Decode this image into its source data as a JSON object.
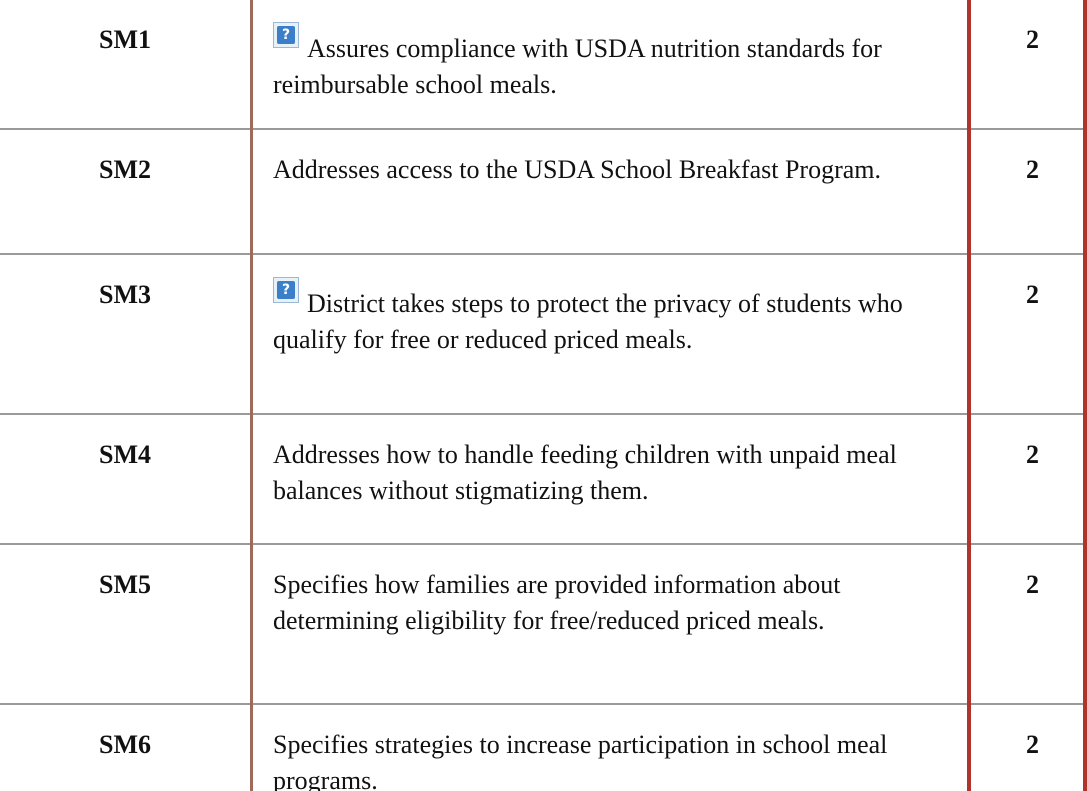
{
  "table": {
    "rows": [
      {
        "code": "SM1",
        "text": "Assures compliance with USDA nutrition standards for reimbursable school meals.",
        "points": "2",
        "help_icon": true
      },
      {
        "code": "SM2",
        "text": "Addresses access to the USDA School Breakfast Program.",
        "points": "2",
        "help_icon": false
      },
      {
        "code": "SM3",
        "text": "District takes steps to protect the privacy of students who qualify for free or reduced priced meals.",
        "points": "2",
        "help_icon": true
      },
      {
        "code": "SM4",
        "text": "Addresses how to handle feeding children with unpaid meal balances without stigmatizing them.",
        "points": "2",
        "help_icon": false
      },
      {
        "code": "SM5",
        "text": "Specifies how families are provided information about determining eligibility for free/reduced priced meals.",
        "points": "2",
        "help_icon": false
      },
      {
        "code": "SM6",
        "text": "Specifies strategies to increase participation in school meal programs.",
        "points": "2",
        "help_icon": false
      }
    ]
  }
}
